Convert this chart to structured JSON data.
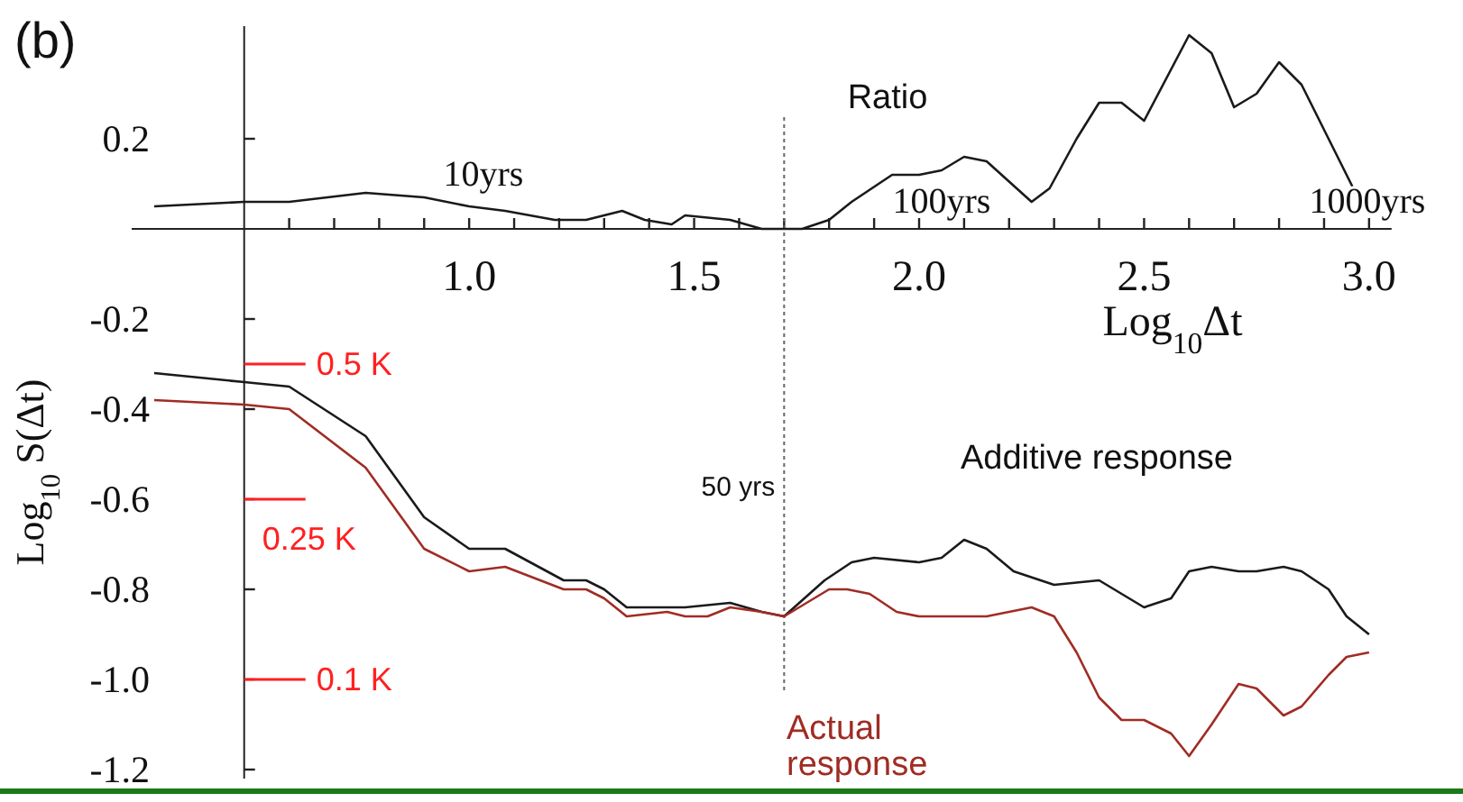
{
  "chart_data": {
    "type": "line",
    "xlabel": "Log$_{10}$Δt",
    "ylabel": "Log$_{10}$ S(Δt)",
    "xlim": [
      0.25,
      3.05
    ],
    "ylim": [
      -1.22,
      0.45
    ],
    "xticks": [
      {
        "value": 0.5,
        "label": null
      },
      {
        "value": 0.6,
        "label": null
      },
      {
        "value": 0.7,
        "label": null
      },
      {
        "value": 0.8,
        "label": null
      },
      {
        "value": 0.9,
        "label": null
      },
      {
        "value": 1.0,
        "label": "1.0"
      },
      {
        "value": 1.1,
        "label": null
      },
      {
        "value": 1.2,
        "label": null
      },
      {
        "value": 1.3,
        "label": null
      },
      {
        "value": 1.4,
        "label": null
      },
      {
        "value": 1.5,
        "label": "1.5"
      },
      {
        "value": 1.6,
        "label": null
      },
      {
        "value": 1.7,
        "label": null
      },
      {
        "value": 1.8,
        "label": null
      },
      {
        "value": 1.9,
        "label": null
      },
      {
        "value": 2.0,
        "label": "2.0"
      },
      {
        "value": 2.1,
        "label": null
      },
      {
        "value": 2.2,
        "label": null
      },
      {
        "value": 2.3,
        "label": null
      },
      {
        "value": 2.4,
        "label": null
      },
      {
        "value": 2.5,
        "label": "2.5"
      },
      {
        "value": 2.6,
        "label": null
      },
      {
        "value": 2.7,
        "label": null
      },
      {
        "value": 2.8,
        "label": null
      },
      {
        "value": 2.9,
        "label": null
      },
      {
        "value": 3.0,
        "label": "3.0"
      }
    ],
    "yticks": [
      {
        "value": -1.2,
        "label": "-1.2"
      },
      {
        "value": -1.0,
        "label": "-1.0"
      },
      {
        "value": -0.8,
        "label": "-0.8"
      },
      {
        "value": -0.6,
        "label": "-0.6"
      },
      {
        "value": -0.4,
        "label": "-0.4"
      },
      {
        "value": -0.2,
        "label": "-0.2"
      },
      {
        "value": 0.2,
        "label": "0.2"
      }
    ],
    "grid": false,
    "line_style": "solid",
    "series": [
      {
        "name": "Ratio",
        "color": "#1a1a1a",
        "x": [
          0.3,
          0.5,
          0.6,
          0.77,
          0.9,
          1.0,
          1.08,
          1.19,
          1.26,
          1.34,
          1.39,
          1.45,
          1.48,
          1.58,
          1.65,
          1.7,
          1.74,
          1.8,
          1.85,
          1.94,
          2.0,
          2.05,
          2.1,
          2.15,
          2.25,
          2.29,
          2.35,
          2.4,
          2.45,
          2.5,
          2.6,
          2.65,
          2.7,
          2.75,
          2.8,
          2.85,
          2.91,
          2.97
        ],
        "values": [
          0.05,
          0.06,
          0.06,
          0.08,
          0.07,
          0.05,
          0.04,
          0.02,
          0.02,
          0.04,
          0.02,
          0.01,
          0.03,
          0.02,
          0.0,
          0.0,
          0.0,
          0.02,
          0.06,
          0.12,
          0.12,
          0.13,
          0.16,
          0.15,
          0.06,
          0.09,
          0.2,
          0.28,
          0.28,
          0.24,
          0.43,
          0.39,
          0.27,
          0.3,
          0.37,
          0.32,
          0.2,
          0.08
        ]
      },
      {
        "name": "Additive response",
        "color": "#1a1a1a",
        "x": [
          0.3,
          0.5,
          0.6,
          0.77,
          0.9,
          1.0,
          1.08,
          1.21,
          1.26,
          1.3,
          1.35,
          1.38,
          1.48,
          1.58,
          1.65,
          1.7,
          1.79,
          1.85,
          1.9,
          2.0,
          2.05,
          2.1,
          2.15,
          2.21,
          2.3,
          2.4,
          2.5,
          2.56,
          2.6,
          2.65,
          2.71,
          2.75,
          2.81,
          2.85,
          2.91,
          2.95,
          3.0
        ],
        "values": [
          -0.32,
          -0.34,
          -0.35,
          -0.46,
          -0.64,
          -0.71,
          -0.71,
          -0.78,
          -0.78,
          -0.8,
          -0.84,
          -0.84,
          -0.84,
          -0.83,
          -0.85,
          -0.86,
          -0.78,
          -0.74,
          -0.73,
          -0.74,
          -0.73,
          -0.69,
          -0.71,
          -0.76,
          -0.79,
          -0.78,
          -0.84,
          -0.82,
          -0.76,
          -0.75,
          -0.76,
          -0.76,
          -0.75,
          -0.76,
          -0.8,
          -0.86,
          -0.9
        ]
      },
      {
        "name": "Actual response",
        "color": "#a02c24",
        "x": [
          0.3,
          0.5,
          0.6,
          0.77,
          0.9,
          1.0,
          1.08,
          1.21,
          1.26,
          1.3,
          1.35,
          1.44,
          1.48,
          1.53,
          1.58,
          1.65,
          1.7,
          1.8,
          1.84,
          1.89,
          1.95,
          2.0,
          2.08,
          2.15,
          2.2,
          2.25,
          2.3,
          2.35,
          2.4,
          2.45,
          2.5,
          2.56,
          2.6,
          2.65,
          2.71,
          2.75,
          2.81,
          2.85,
          2.91,
          2.95,
          3.0
        ],
        "values": [
          -0.38,
          -0.39,
          -0.4,
          -0.53,
          -0.71,
          -0.76,
          -0.75,
          -0.8,
          -0.8,
          -0.82,
          -0.86,
          -0.85,
          -0.86,
          -0.86,
          -0.84,
          -0.85,
          -0.86,
          -0.8,
          -0.8,
          -0.81,
          -0.85,
          -0.86,
          -0.86,
          -0.86,
          -0.85,
          -0.84,
          -0.86,
          -0.94,
          -1.04,
          -1.09,
          -1.09,
          -1.12,
          -1.17,
          -1.1,
          -1.01,
          -1.02,
          -1.08,
          -1.06,
          -0.99,
          -0.95,
          -0.94
        ]
      }
    ],
    "ref_lines": [
      {
        "axis": "y",
        "value": -0.3,
        "label": "0.5 K",
        "color": "#ff2020"
      },
      {
        "axis": "y",
        "value": -0.6,
        "label": "0.25 K",
        "color": "#ff2020"
      },
      {
        "axis": "y",
        "value": -1.0,
        "label": "0.1 K",
        "color": "#ff2020"
      },
      {
        "axis": "x",
        "value": 1.7,
        "label": "50 yrs",
        "color": "#666666",
        "line_style": "dotted"
      }
    ],
    "annotations": [
      "(b)",
      "10yrs",
      "100yrs",
      "1000yrs"
    ]
  }
}
